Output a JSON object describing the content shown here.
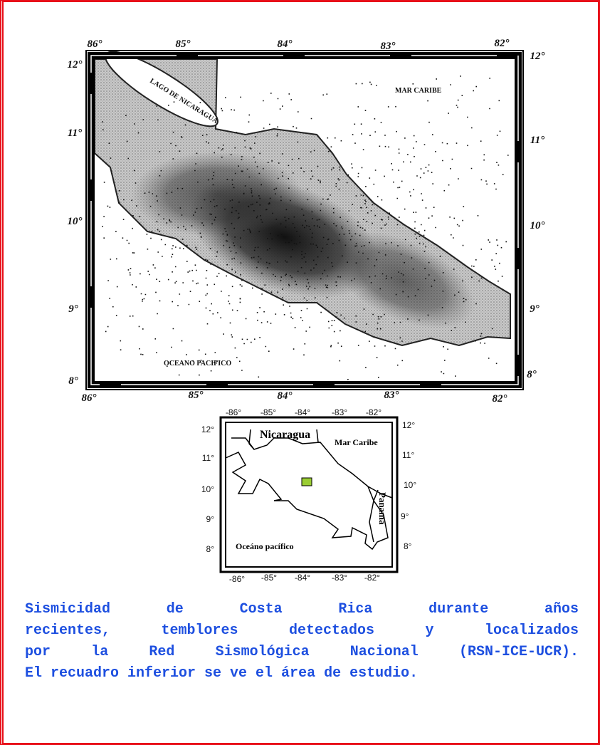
{
  "main_map": {
    "top_labels": [
      "86°",
      "85°",
      "84°",
      "83°",
      "82°"
    ],
    "bottom_labels": [
      "86°",
      "85°",
      "84°",
      "83°",
      "82°"
    ],
    "left_labels": [
      "12°",
      "11°",
      "10°",
      "9°",
      "8°"
    ],
    "right_labels": [
      "12°",
      "11°",
      "10°",
      "9°",
      "8°"
    ],
    "place_labels": [
      "LAGO DE NICARAGUA",
      "MAR CARIBE",
      "OCEANO PACIFICO"
    ]
  },
  "inset_map": {
    "top_labels": [
      "-86°",
      "-85°",
      "-84°",
      "-83°",
      "-82°"
    ],
    "bottom_labels": [
      "-86°",
      "-85°",
      "-84°",
      "-83°",
      "-82°"
    ],
    "left_labels": [
      "12°",
      "11°",
      "10°",
      "9°",
      "8°"
    ],
    "right_labels": [
      "12°",
      "11°",
      "10°",
      "9°",
      "8°"
    ],
    "place_labels": [
      "Nicaragua",
      "Mar Caribe",
      "Panama",
      "Oceáno pacífico"
    ]
  },
  "caption": {
    "lines": [
      "Sismicidad de Costa Rica durante años",
      "recientes, temblores detectados y localizados",
      "por la Red Sismológica Nacional (RSN-ICE-UCR).",
      "El recuadro inferior se ve el área de estudio."
    ]
  }
}
